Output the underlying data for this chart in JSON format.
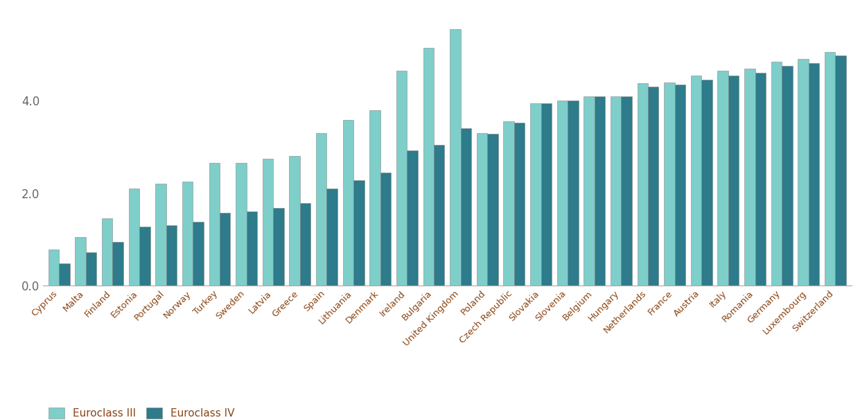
{
  "categories": [
    "Cyprus",
    "Malta",
    "Finland",
    "Estonia",
    "Portugal",
    "Norway",
    "Turkey",
    "Sweden",
    "Latvia",
    "Greece",
    "Spain",
    "Lithuania",
    "Denmark",
    "Ireland",
    "Bulgaria",
    "United Kingdom",
    "Poland",
    "Czech Republic",
    "Slovakia",
    "Slovenia",
    "Belgium",
    "Hungary",
    "Netherlands",
    "France",
    "Austria",
    "Italy",
    "Romania",
    "Germany",
    "Luxembourg",
    "Switzerland"
  ],
  "euroclass_III": [
    0.78,
    1.05,
    1.45,
    2.1,
    2.2,
    2.25,
    2.65,
    2.65,
    2.75,
    2.8,
    3.3,
    3.58,
    3.8,
    4.65,
    5.15,
    5.55,
    3.3,
    3.55,
    3.95,
    4.0,
    4.1,
    4.1,
    4.38,
    4.4,
    4.55,
    4.65,
    4.7,
    4.85,
    4.9,
    5.05
  ],
  "euroclass_IV": [
    0.48,
    0.72,
    0.95,
    1.28,
    1.3,
    1.38,
    1.58,
    1.6,
    1.68,
    1.78,
    2.1,
    2.28,
    2.45,
    2.92,
    3.05,
    3.4,
    3.28,
    3.52,
    3.95,
    4.0,
    4.1,
    4.1,
    4.3,
    4.35,
    4.45,
    4.55,
    4.6,
    4.75,
    4.82,
    4.98
  ],
  "color_III": "#7ececa",
  "color_IV": "#2d7b8b",
  "legend_III": "Euroclass III",
  "legend_IV": "Euroclass IV",
  "ylim": [
    0,
    6.0
  ],
  "yticks": [
    0.0,
    2.0,
    4.0
  ],
  "background_color": "#ffffff",
  "bar_edge_color": "#888888",
  "bar_edge_width": 0.4,
  "tick_label_color": "#8B4513",
  "axis_label_color": "#666666"
}
